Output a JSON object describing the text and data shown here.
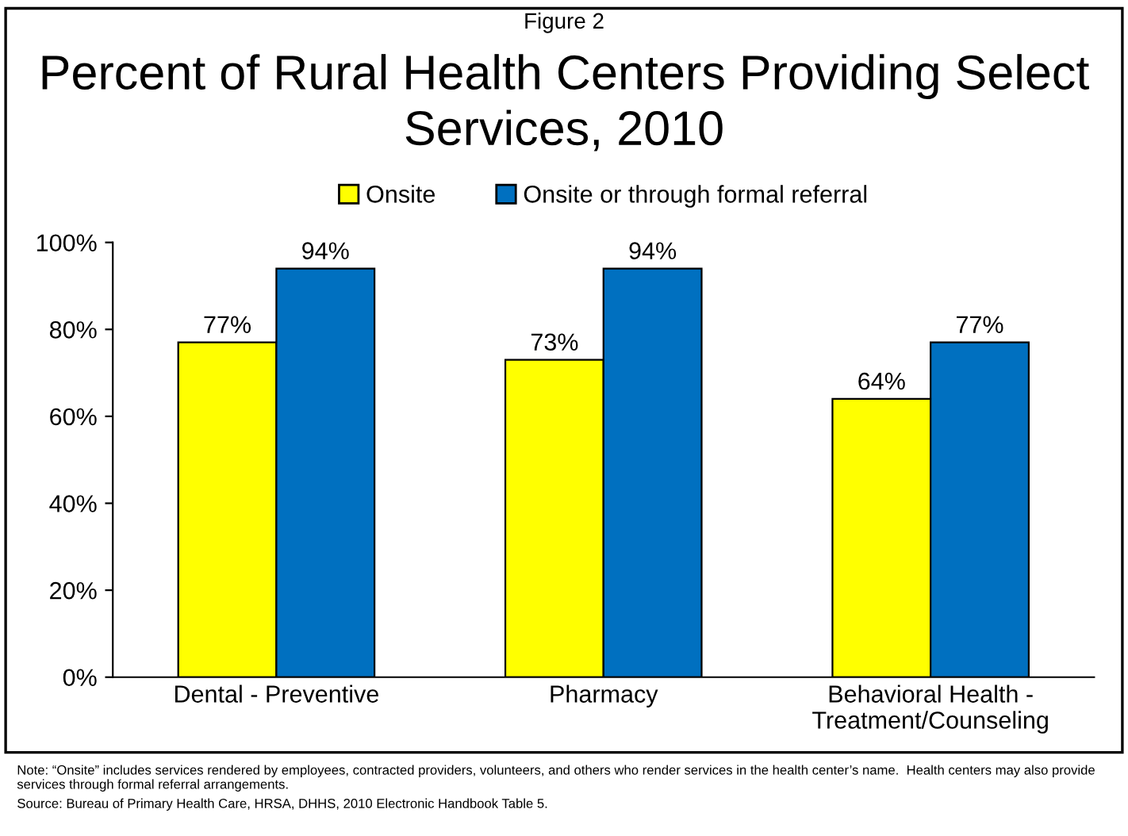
{
  "chart_data": {
    "type": "bar",
    "title": "Percent of Rural Health Centers Providing Select Services, 2010",
    "categories": [
      "Dental - Preventive",
      "Pharmacy",
      "Behavioral Health -\nTreatment/Counseling"
    ],
    "series": [
      {
        "name": "Onsite",
        "color": "#ffff00",
        "values": [
          77,
          73,
          64
        ],
        "value_labels": [
          "77%",
          "73%",
          "64%"
        ]
      },
      {
        "name": "Onsite or through formal referral",
        "color": "#0070c0",
        "values": [
          94,
          94,
          77
        ],
        "value_labels": [
          "94%",
          "94%",
          "77%"
        ]
      }
    ],
    "ylim": [
      0,
      100
    ],
    "yticks": [
      {
        "value": 0,
        "label": "0%"
      },
      {
        "value": 20,
        "label": "20%"
      },
      {
        "value": 40,
        "label": "40%"
      },
      {
        "value": 60,
        "label": "60%"
      },
      {
        "value": 80,
        "label": "80%"
      },
      {
        "value": 100,
        "label": "100%"
      }
    ],
    "grid": false,
    "legend": "top",
    "annotations": [
      "Figure 2",
      "Note: “Onsite” includes services rendered by employees, contracted providers, volunteers, and others who render services in the health center’s name.  Health centers may also provide services through formal referral arrangements.",
      "Source: Bureau of Primary Health Care, HRSA, DHHS, 2010 Electronic Handbook Table 5."
    ]
  }
}
